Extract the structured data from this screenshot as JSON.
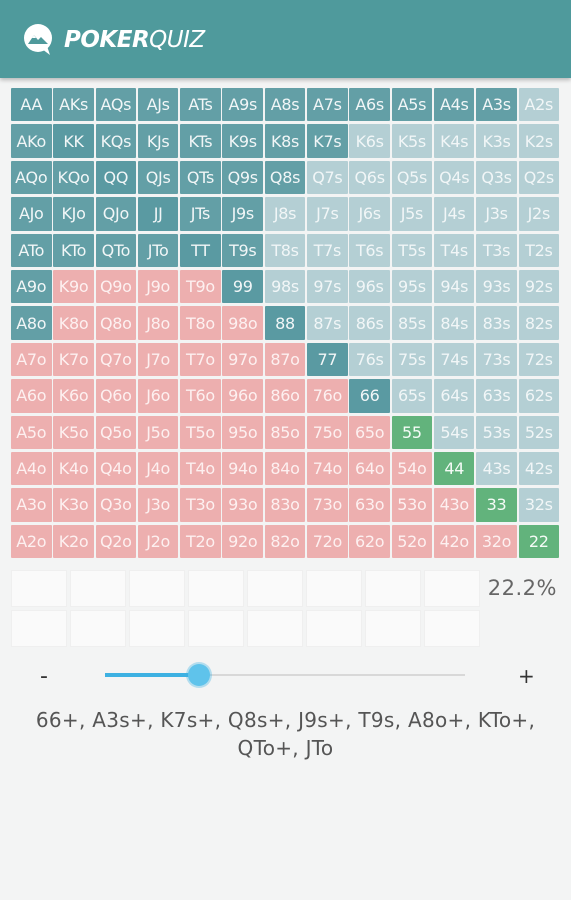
{
  "header": {
    "brand_bold": "POKER",
    "brand_light": "QUIZ",
    "logo_icon": "chat-bubble-mountain-icon",
    "color": "#4f9a9c"
  },
  "colors": {
    "selected_suited": "#639fa6",
    "unselected_suited": "#b4cfd4",
    "offsuit": "#edafaf",
    "pair": "#5a9aa2",
    "pair_unselected": "#62b37c"
  },
  "grid": {
    "rows": [
      [
        [
          "AA",
          "p"
        ],
        [
          "AKs",
          "s"
        ],
        [
          "AQs",
          "s"
        ],
        [
          "AJs",
          "s"
        ],
        [
          "ATs",
          "s"
        ],
        [
          "A9s",
          "s"
        ],
        [
          "A8s",
          "s"
        ],
        [
          "A7s",
          "s"
        ],
        [
          "A6s",
          "s"
        ],
        [
          "A5s",
          "s"
        ],
        [
          "A4s",
          "s"
        ],
        [
          "A3s",
          "s"
        ],
        [
          "A2s",
          "su"
        ]
      ],
      [
        [
          "AKo",
          "s"
        ],
        [
          "KK",
          "p"
        ],
        [
          "KQs",
          "s"
        ],
        [
          "KJs",
          "s"
        ],
        [
          "KTs",
          "s"
        ],
        [
          "K9s",
          "s"
        ],
        [
          "K8s",
          "s"
        ],
        [
          "K7s",
          "s"
        ],
        [
          "K6s",
          "su"
        ],
        [
          "K5s",
          "su"
        ],
        [
          "K4s",
          "su"
        ],
        [
          "K3s",
          "su"
        ],
        [
          "K2s",
          "su"
        ]
      ],
      [
        [
          "AQo",
          "s"
        ],
        [
          "KQo",
          "s"
        ],
        [
          "QQ",
          "p"
        ],
        [
          "QJs",
          "s"
        ],
        [
          "QTs",
          "s"
        ],
        [
          "Q9s",
          "s"
        ],
        [
          "Q8s",
          "s"
        ],
        [
          "Q7s",
          "su"
        ],
        [
          "Q6s",
          "su"
        ],
        [
          "Q5s",
          "su"
        ],
        [
          "Q4s",
          "su"
        ],
        [
          "Q3s",
          "su"
        ],
        [
          "Q2s",
          "su"
        ]
      ],
      [
        [
          "AJo",
          "s"
        ],
        [
          "KJo",
          "s"
        ],
        [
          "QJo",
          "s"
        ],
        [
          "JJ",
          "p"
        ],
        [
          "JTs",
          "s"
        ],
        [
          "J9s",
          "s"
        ],
        [
          "J8s",
          "su"
        ],
        [
          "J7s",
          "su"
        ],
        [
          "J6s",
          "su"
        ],
        [
          "J5s",
          "su"
        ],
        [
          "J4s",
          "su"
        ],
        [
          "J3s",
          "su"
        ],
        [
          "J2s",
          "su"
        ]
      ],
      [
        [
          "ATo",
          "s"
        ],
        [
          "KTo",
          "s"
        ],
        [
          "QTo",
          "s"
        ],
        [
          "JTo",
          "s"
        ],
        [
          "TT",
          "p"
        ],
        [
          "T9s",
          "s"
        ],
        [
          "T8s",
          "su"
        ],
        [
          "T7s",
          "su"
        ],
        [
          "T6s",
          "su"
        ],
        [
          "T5s",
          "su"
        ],
        [
          "T4s",
          "su"
        ],
        [
          "T3s",
          "su"
        ],
        [
          "T2s",
          "su"
        ]
      ],
      [
        [
          "A9o",
          "s"
        ],
        [
          "K9o",
          "o"
        ],
        [
          "Q9o",
          "o"
        ],
        [
          "J9o",
          "o"
        ],
        [
          "T9o",
          "o"
        ],
        [
          "99",
          "p"
        ],
        [
          "98s",
          "su"
        ],
        [
          "97s",
          "su"
        ],
        [
          "96s",
          "su"
        ],
        [
          "95s",
          "su"
        ],
        [
          "94s",
          "su"
        ],
        [
          "93s",
          "su"
        ],
        [
          "92s",
          "su"
        ]
      ],
      [
        [
          "A8o",
          "s"
        ],
        [
          "K8o",
          "o"
        ],
        [
          "Q8o",
          "o"
        ],
        [
          "J8o",
          "o"
        ],
        [
          "T8o",
          "o"
        ],
        [
          "98o",
          "o"
        ],
        [
          "88",
          "p"
        ],
        [
          "87s",
          "su"
        ],
        [
          "86s",
          "su"
        ],
        [
          "85s",
          "su"
        ],
        [
          "84s",
          "su"
        ],
        [
          "83s",
          "su"
        ],
        [
          "82s",
          "su"
        ]
      ],
      [
        [
          "A7o",
          "o"
        ],
        [
          "K7o",
          "o"
        ],
        [
          "Q7o",
          "o"
        ],
        [
          "J7o",
          "o"
        ],
        [
          "T7o",
          "o"
        ],
        [
          "97o",
          "o"
        ],
        [
          "87o",
          "o"
        ],
        [
          "77",
          "p"
        ],
        [
          "76s",
          "su"
        ],
        [
          "75s",
          "su"
        ],
        [
          "74s",
          "su"
        ],
        [
          "73s",
          "su"
        ],
        [
          "72s",
          "su"
        ]
      ],
      [
        [
          "A6o",
          "o"
        ],
        [
          "K6o",
          "o"
        ],
        [
          "Q6o",
          "o"
        ],
        [
          "J6o",
          "o"
        ],
        [
          "T6o",
          "o"
        ],
        [
          "96o",
          "o"
        ],
        [
          "86o",
          "o"
        ],
        [
          "76o",
          "o"
        ],
        [
          "66",
          "p"
        ],
        [
          "65s",
          "su"
        ],
        [
          "64s",
          "su"
        ],
        [
          "63s",
          "su"
        ],
        [
          "62s",
          "su"
        ]
      ],
      [
        [
          "A5o",
          "o"
        ],
        [
          "K5o",
          "o"
        ],
        [
          "Q5o",
          "o"
        ],
        [
          "J5o",
          "o"
        ],
        [
          "T5o",
          "o"
        ],
        [
          "95o",
          "o"
        ],
        [
          "85o",
          "o"
        ],
        [
          "75o",
          "o"
        ],
        [
          "65o",
          "o"
        ],
        [
          "55",
          "g"
        ],
        [
          "54s",
          "su"
        ],
        [
          "53s",
          "su"
        ],
        [
          "52s",
          "su"
        ]
      ],
      [
        [
          "A4o",
          "o"
        ],
        [
          "K4o",
          "o"
        ],
        [
          "Q4o",
          "o"
        ],
        [
          "J4o",
          "o"
        ],
        [
          "T4o",
          "o"
        ],
        [
          "94o",
          "o"
        ],
        [
          "84o",
          "o"
        ],
        [
          "74o",
          "o"
        ],
        [
          "64o",
          "o"
        ],
        [
          "54o",
          "o"
        ],
        [
          "44",
          "g"
        ],
        [
          "43s",
          "su"
        ],
        [
          "42s",
          "su"
        ]
      ],
      [
        [
          "A3o",
          "o"
        ],
        [
          "K3o",
          "o"
        ],
        [
          "Q3o",
          "o"
        ],
        [
          "J3o",
          "o"
        ],
        [
          "T3o",
          "o"
        ],
        [
          "93o",
          "o"
        ],
        [
          "83o",
          "o"
        ],
        [
          "73o",
          "o"
        ],
        [
          "63o",
          "o"
        ],
        [
          "53o",
          "o"
        ],
        [
          "43o",
          "o"
        ],
        [
          "33",
          "g"
        ],
        [
          "32s",
          "su"
        ]
      ],
      [
        [
          "A2o",
          "o"
        ],
        [
          "K2o",
          "o"
        ],
        [
          "Q2o",
          "o"
        ],
        [
          "J2o",
          "o"
        ],
        [
          "T2o",
          "o"
        ],
        [
          "92o",
          "o"
        ],
        [
          "82o",
          "o"
        ],
        [
          "72o",
          "o"
        ],
        [
          "62o",
          "o"
        ],
        [
          "52o",
          "o"
        ],
        [
          "42o",
          "o"
        ],
        [
          "32o",
          "o"
        ],
        [
          "22",
          "g"
        ]
      ]
    ]
  },
  "summary": {
    "percent": "22.2%"
  },
  "slider": {
    "minus_label": "-",
    "plus_label": "+",
    "value_fraction": 0.26
  },
  "range_text": "66+, A3s+, K7s+, Q8s+, J9s+, T9s, A8o+, KTo+, QTo+, JTo"
}
